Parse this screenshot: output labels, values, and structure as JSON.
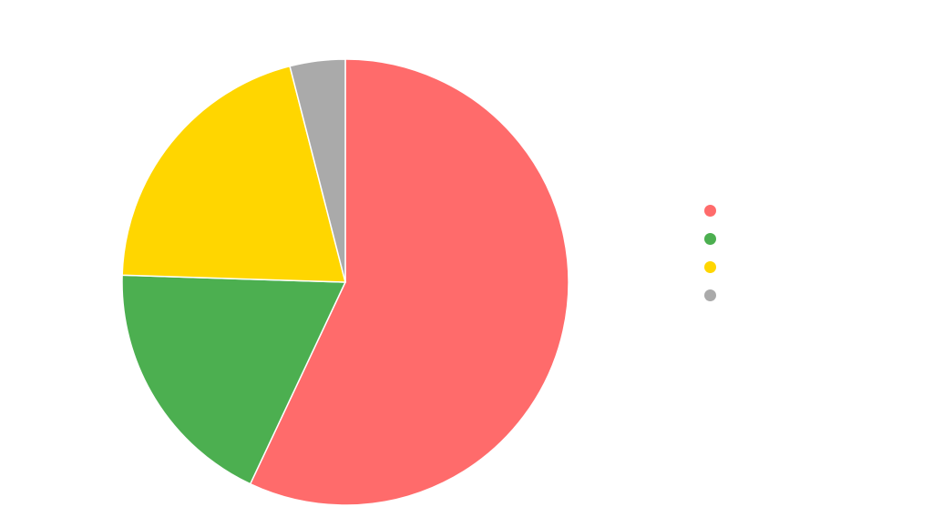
{
  "chart_data": {
    "type": "pie",
    "title": "",
    "start": "top",
    "direction": "clockwise",
    "slices": [
      {
        "label": "",
        "value": 57,
        "color": "#ff6b6b"
      },
      {
        "label": "",
        "value": 18.5,
        "color": "#4caf50"
      },
      {
        "label": "",
        "value": 20.5,
        "color": "#ffd600"
      },
      {
        "label": "",
        "value": 4,
        "color": "#aaaaaa"
      }
    ],
    "legend_position": "right"
  }
}
